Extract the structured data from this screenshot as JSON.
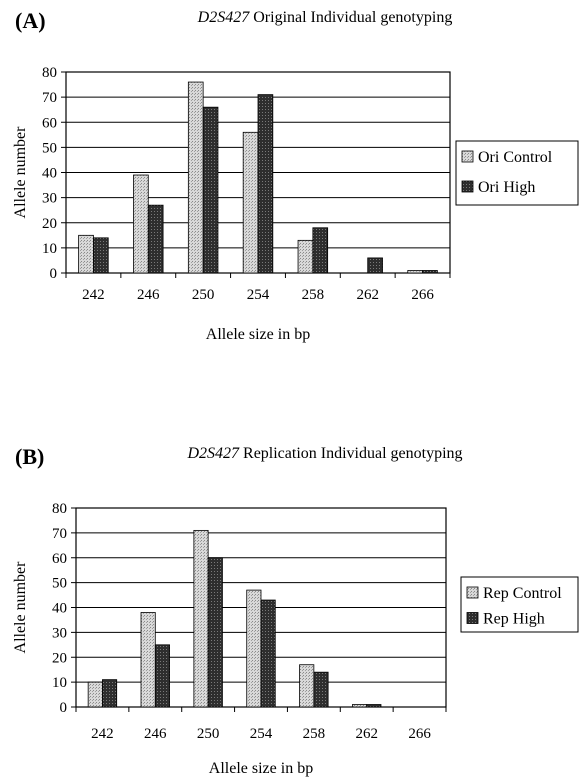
{
  "chart_data": [
    {
      "type": "bar",
      "panel": "(A)",
      "title_gene": "D2S427",
      "title_rest": " Original Individual genotyping",
      "xlabel": "Allele size in bp",
      "ylabel": "Allele number",
      "categories": [
        "242",
        "246",
        "250",
        "254",
        "258",
        "262",
        "266"
      ],
      "ylim": [
        0,
        80
      ],
      "yticks": [
        0,
        10,
        20,
        30,
        40,
        50,
        60,
        70,
        80
      ],
      "grid": true,
      "legend_position": "right",
      "series": [
        {
          "name": "Ori Control",
          "values": [
            15,
            39,
            76,
            56,
            13,
            0,
            1
          ],
          "color": "#c8c8c8"
        },
        {
          "name": "Ori High",
          "values": [
            14,
            27,
            66,
            71,
            18,
            6,
            1
          ],
          "color": "#3a3a3a"
        }
      ]
    },
    {
      "type": "bar",
      "panel": "(B)",
      "title_gene": "D2S427",
      "title_rest": " Replication Individual genotyping",
      "xlabel": "Allele size in bp",
      "ylabel": "Allele number",
      "categories": [
        "242",
        "246",
        "250",
        "254",
        "258",
        "262",
        "266"
      ],
      "ylim": [
        0,
        80
      ],
      "yticks": [
        0,
        10,
        20,
        30,
        40,
        50,
        60,
        70,
        80
      ],
      "grid": true,
      "legend_position": "right",
      "series": [
        {
          "name": "Rep Control",
          "values": [
            10,
            38,
            71,
            47,
            17,
            1,
            0
          ],
          "color": "#c8c8c8"
        },
        {
          "name": "Rep High",
          "values": [
            11,
            25,
            60,
            43,
            14,
            1,
            0
          ],
          "color": "#3a3a3a"
        }
      ]
    }
  ]
}
